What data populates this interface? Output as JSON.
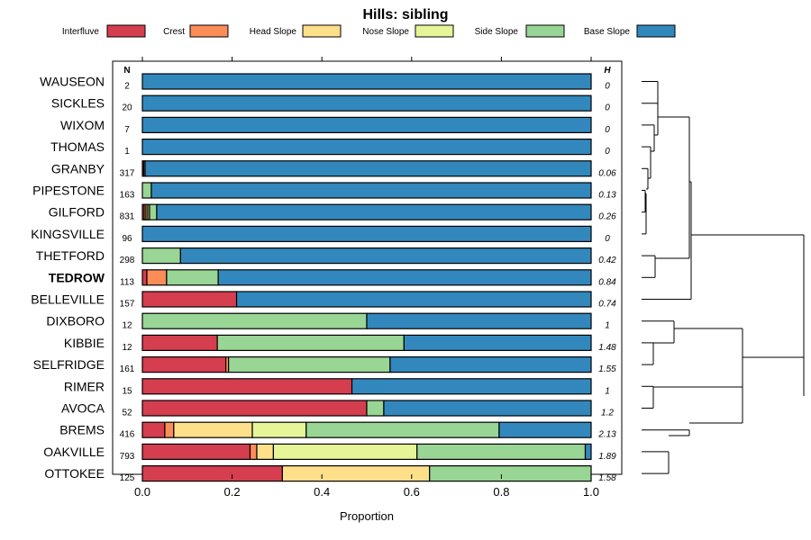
{
  "chart_data": {
    "type": "bar",
    "orientation": "horizontal-stacked",
    "title": "Hills: sibling",
    "xlabel": "Proportion",
    "ylabel": "",
    "xlim": [
      0,
      1
    ],
    "x_ticks": [
      "0.0",
      "0.2",
      "0.4",
      "0.6",
      "0.8",
      "1.0"
    ],
    "x_tick_values": [
      0,
      0.2,
      0.4,
      0.6,
      0.8,
      1.0
    ],
    "n_header": "N",
    "h_header": "H",
    "legend": [
      {
        "name": "Interfluve",
        "color": "#d53e4f"
      },
      {
        "name": "Crest",
        "color": "#fc8d59"
      },
      {
        "name": "Head Slope",
        "color": "#fee08b"
      },
      {
        "name": "Nose Slope",
        "color": "#e6f598"
      },
      {
        "name": "Side Slope",
        "color": "#99d594"
      },
      {
        "name": "Base Slope",
        "color": "#3288bd"
      }
    ],
    "rows": [
      {
        "name": "WAUSEON",
        "n": "2",
        "h": "0",
        "bold": false,
        "values": [
          0,
          0,
          0,
          0,
          0,
          1.0
        ]
      },
      {
        "name": "SICKLES",
        "n": "20",
        "h": "0",
        "bold": false,
        "values": [
          0,
          0,
          0,
          0,
          0,
          1.0
        ]
      },
      {
        "name": "WIXOM",
        "n": "7",
        "h": "0",
        "bold": false,
        "values": [
          0,
          0,
          0,
          0,
          0,
          1.0
        ]
      },
      {
        "name": "THOMAS",
        "n": "1",
        "h": "0",
        "bold": false,
        "values": [
          0,
          0,
          0,
          0,
          0,
          1.0
        ]
      },
      {
        "name": "GRANBY",
        "n": "317",
        "h": "0.06",
        "bold": false,
        "values": [
          0.003,
          0.003,
          0,
          0,
          0,
          0.994
        ]
      },
      {
        "name": "PIPESTONE",
        "n": "163",
        "h": "0.13",
        "bold": false,
        "values": [
          0,
          0,
          0,
          0,
          0.02,
          0.98
        ]
      },
      {
        "name": "GILFORD",
        "n": "831",
        "h": "0.26",
        "bold": false,
        "values": [
          0.004,
          0.004,
          0.004,
          0.004,
          0.016,
          0.968
        ]
      },
      {
        "name": "KINGSVILLE",
        "n": "96",
        "h": "0",
        "bold": false,
        "values": [
          0,
          0,
          0,
          0,
          0,
          1.0
        ]
      },
      {
        "name": "THETFORD",
        "n": "298",
        "h": "0.42",
        "bold": false,
        "values": [
          0,
          0,
          0,
          0,
          0.085,
          0.915
        ]
      },
      {
        "name": "TEDROW",
        "n": "113",
        "h": "0.84",
        "bold": true,
        "values": [
          0.01,
          0.044,
          0,
          0,
          0.115,
          0.831
        ]
      },
      {
        "name": "BELLEVILLE",
        "n": "157",
        "h": "0.74",
        "bold": false,
        "values": [
          0.21,
          0,
          0,
          0,
          0,
          0.79
        ]
      },
      {
        "name": "DIXBORO",
        "n": "12",
        "h": "1",
        "bold": false,
        "values": [
          0,
          0,
          0,
          0,
          0.5,
          0.5
        ]
      },
      {
        "name": "KIBBIE",
        "n": "12",
        "h": "1.48",
        "bold": false,
        "values": [
          0.167,
          0,
          0,
          0,
          0.416,
          0.417
        ]
      },
      {
        "name": "SELFRIDGE",
        "n": "161",
        "h": "1.55",
        "bold": false,
        "values": [
          0.186,
          0.006,
          0,
          0,
          0.36,
          0.448
        ]
      },
      {
        "name": "RIMER",
        "n": "15",
        "h": "1",
        "bold": false,
        "values": [
          0.467,
          0,
          0,
          0,
          0,
          0.533
        ]
      },
      {
        "name": "AVOCA",
        "n": "52",
        "h": "1.2",
        "bold": false,
        "values": [
          0.5,
          0,
          0,
          0,
          0.038,
          0.462
        ]
      },
      {
        "name": "BREMS",
        "n": "416",
        "h": "2.13",
        "bold": false,
        "values": [
          0.05,
          0.02,
          0.175,
          0.12,
          0.43,
          0.205
        ]
      },
      {
        "name": "OAKVILLE",
        "n": "793",
        "h": "1.89",
        "bold": false,
        "values": [
          0.24,
          0.015,
          0.037,
          0.32,
          0.375,
          0.013
        ]
      },
      {
        "name": "OTTOKEE",
        "n": "125",
        "h": "1.58",
        "bold": false,
        "values": [
          0.312,
          0,
          0.328,
          0,
          0.36,
          0
        ]
      }
    ]
  }
}
